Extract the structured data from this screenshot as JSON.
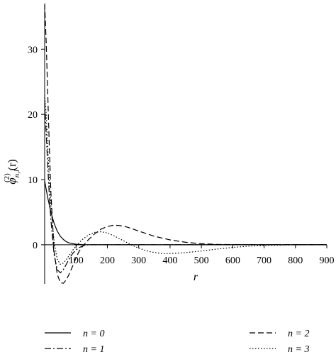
{
  "chart_data": {
    "type": "line",
    "xlabel": "r",
    "ylabel": {
      "base": "φ",
      "superscript": "(2)",
      "subscript": "n,l",
      "arg": "(r)"
    },
    "xlim": [
      0,
      900
    ],
    "ylim": [
      -6,
      37
    ],
    "x_ticks": [
      100,
      200,
      300,
      400,
      500,
      600,
      700,
      800,
      900
    ],
    "y_ticks": [
      0,
      10,
      20,
      30
    ],
    "grid": false,
    "legend_position": "bottom",
    "series": [
      {
        "name": "n = 0",
        "dash": "solid",
        "x": [
          0,
          5,
          10,
          20,
          30,
          40,
          50,
          60,
          70,
          80,
          100,
          120,
          150,
          200,
          300,
          500,
          900
        ],
        "y": [
          9.8,
          8.5,
          7.2,
          5.0,
          3.3,
          2.1,
          1.3,
          0.8,
          0.45,
          0.25,
          0.08,
          0.02,
          0.005,
          0,
          0,
          0,
          0
        ]
      },
      {
        "name": "n = 1",
        "dash": "dashdot",
        "x": [
          0,
          5,
          10,
          15,
          20,
          30,
          40,
          50,
          60,
          70,
          80,
          90,
          100,
          110,
          120,
          130,
          140,
          160,
          200,
          300,
          500,
          900
        ],
        "y": [
          22,
          17,
          12,
          7.5,
          3.8,
          -1.5,
          -3.8,
          -4.3,
          -3.8,
          -2.9,
          -2.0,
          -1.3,
          -0.8,
          -0.45,
          -0.2,
          -0.05,
          0.0,
          0.0,
          0,
          0,
          0,
          0
        ]
      },
      {
        "name": "n = 2",
        "dash": "dashed",
        "x": [
          0,
          5,
          10,
          15,
          20,
          30,
          40,
          50,
          60,
          70,
          80,
          90,
          100,
          110,
          120,
          140,
          160,
          180,
          200,
          220,
          240,
          260,
          280,
          300,
          350,
          400,
          450,
          500,
          550,
          600,
          650,
          700,
          900
        ],
        "y": [
          37,
          31,
          23,
          15,
          8,
          -1,
          -4.5,
          -5.8,
          -5.9,
          -5.3,
          -4.3,
          -3.2,
          -2.0,
          -1.0,
          -0.3,
          0.8,
          1.7,
          2.4,
          2.8,
          3.0,
          2.95,
          2.75,
          2.45,
          2.1,
          1.3,
          0.75,
          0.38,
          0.16,
          0.06,
          0.02,
          0.0,
          0.0,
          0.0
        ]
      },
      {
        "name": "n = 3",
        "dash": "dotted",
        "x": [
          0,
          5,
          10,
          15,
          20,
          30,
          40,
          50,
          60,
          70,
          80,
          90,
          100,
          120,
          140,
          160,
          180,
          200,
          220,
          240,
          260,
          280,
          300,
          320,
          340,
          360,
          380,
          400,
          450,
          500,
          550,
          600,
          650,
          700,
          750,
          800,
          850,
          900
        ],
        "y": [
          23,
          20,
          15,
          10,
          6,
          0.5,
          -2.2,
          -3.0,
          -2.8,
          -2.2,
          -1.5,
          -0.8,
          -0.2,
          0.8,
          1.5,
          1.9,
          2.0,
          1.8,
          1.4,
          0.9,
          0.4,
          -0.1,
          -0.5,
          -0.85,
          -1.1,
          -1.25,
          -1.35,
          -1.35,
          -1.2,
          -0.95,
          -0.65,
          -0.4,
          -0.22,
          -0.1,
          -0.04,
          -0.01,
          0.0,
          0.0
        ]
      }
    ]
  }
}
